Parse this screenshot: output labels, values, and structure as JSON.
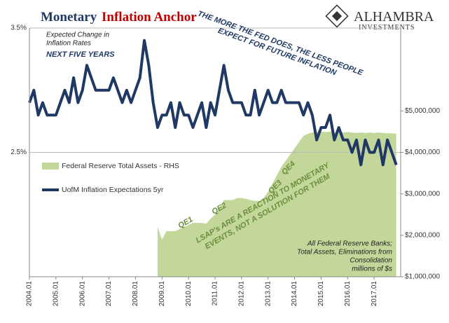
{
  "chart_data": {
    "type": "line",
    "title": [
      "Monetary",
      "Inflation Anchor"
    ],
    "logo": [
      "ALHAMBRA",
      "INVESTMENTS"
    ],
    "categories": [
      "2004.01",
      null,
      null,
      null,
      null,
      null,
      "2005.01",
      null,
      null,
      null,
      null,
      null,
      "2006.01",
      null,
      null,
      null,
      null,
      null,
      "2007.01",
      null,
      null,
      null,
      null,
      null,
      "2008.01",
      null,
      null,
      null,
      null,
      null,
      "2009.01",
      null,
      null,
      null,
      null,
      null,
      "2010.01",
      null,
      null,
      null,
      null,
      null,
      "2011.01",
      null,
      null,
      null,
      null,
      null,
      "2012.01",
      null,
      null,
      null,
      null,
      null,
      "2013.01",
      null,
      null,
      null,
      null,
      null,
      "2014.01",
      null,
      null,
      null,
      null,
      null,
      "2015.01",
      null,
      null,
      null,
      null,
      null,
      "2016.01",
      null,
      null,
      null,
      null,
      null,
      "2017.01",
      null,
      null,
      null,
      null,
      null
    ],
    "series": [
      {
        "name": "Federal Reserve Total Assets - RHS",
        "color": "#c4d79b",
        "axis": "y2",
        "kind": "area",
        "values": [
          null,
          null,
          null,
          null,
          null,
          null,
          null,
          null,
          null,
          null,
          null,
          null,
          null,
          null,
          null,
          null,
          null,
          null,
          null,
          null,
          null,
          null,
          null,
          null,
          null,
          null,
          null,
          null,
          null,
          2200000,
          1900000,
          2100000,
          2100000,
          2100000,
          2150000,
          2200000,
          2250000,
          2300000,
          2300000,
          2300000,
          2280000,
          2400000,
          2500000,
          2650000,
          2850000,
          2850000,
          2850000,
          2900000,
          2900000,
          2880000,
          2850000,
          2830000,
          2830000,
          2900000,
          3050000,
          3250000,
          3450000,
          3650000,
          3800000,
          3950000,
          4100000,
          4250000,
          4400000,
          4450000,
          4480000,
          4500000,
          4500000,
          4490000,
          4500000,
          4480000,
          4490000,
          4480000,
          4490000,
          4480000,
          4470000,
          4480000,
          4470000,
          4480000,
          4470000,
          4480000,
          4470000,
          4460000,
          4460000,
          4450000
        ]
      },
      {
        "name": "UofM Inflation Expectations 5yr",
        "color": "#1f3864",
        "kind": "line",
        "values": [
          2.9,
          3.0,
          2.8,
          2.9,
          2.8,
          2.8,
          2.8,
          2.9,
          3.0,
          2.9,
          3.1,
          2.9,
          3.0,
          3.2,
          3.1,
          3.0,
          3.0,
          3.0,
          3.0,
          3.1,
          3.0,
          2.9,
          3.0,
          2.9,
          3.0,
          3.1,
          3.4,
          3.2,
          2.9,
          2.7,
          2.8,
          2.8,
          2.9,
          2.7,
          2.9,
          2.8,
          2.8,
          2.7,
          2.8,
          2.9,
          2.7,
          2.9,
          2.8,
          3.0,
          3.2,
          3.0,
          2.9,
          2.9,
          2.9,
          2.8,
          2.8,
          3.0,
          2.8,
          2.9,
          3.0,
          2.9,
          2.9,
          3.0,
          2.9,
          2.9,
          2.9,
          2.9,
          2.8,
          2.9,
          2.8,
          2.6,
          2.7,
          2.7,
          2.8,
          2.6,
          2.7,
          2.6,
          2.6,
          2.5,
          2.6,
          2.4,
          2.6,
          2.5,
          2.5,
          2.6,
          2.4,
          2.6,
          2.5,
          2.4
        ]
      }
    ],
    "ylim": [
      1.5,
      3.5
    ],
    "yticks": [
      {
        "value": 3.5,
        "label": "3.5%"
      },
      {
        "value": 2.5,
        "label": "2.5%"
      }
    ],
    "y2lim": [
      1000000,
      7000000
    ],
    "y2ticks": [
      {
        "value": 1000000,
        "label": "$1,000,000"
      },
      {
        "value": 2000000,
        "label": "$2,000,000"
      },
      {
        "value": 3000000,
        "label": "$3,000,000"
      },
      {
        "value": 4000000,
        "label": "$4,000,000"
      },
      {
        "value": 5000000,
        "label": "$5,000,000"
      }
    ],
    "grid": true,
    "legend": "middle-left",
    "annotations": [
      {
        "lines": [
          "Expected Change in",
          "Inflation Rates"
        ]
      },
      {
        "lines": [
          "NEXT FIVE YEARS"
        ]
      },
      {
        "lines": [
          "THE MORE THE FED DOES, THE LESS PEOPLE",
          "EXPECT FOR FUTURE INFLATION"
        ]
      },
      {
        "lines": [
          "LSAP's ARE A REACTION TO MONETARY",
          "EVENTS, NOT A SOLUTION FOR THEM"
        ]
      },
      {
        "lines": [
          "All Federal Reserve Banks;",
          "Total Assets, Eliminations from",
          "Consolidation",
          "millions of $s"
        ]
      },
      {
        "lines": [
          "QE1"
        ]
      },
      {
        "lines": [
          "QE2"
        ]
      },
      {
        "lines": [
          "QE3"
        ]
      },
      {
        "lines": [
          "QE4"
        ]
      }
    ]
  }
}
